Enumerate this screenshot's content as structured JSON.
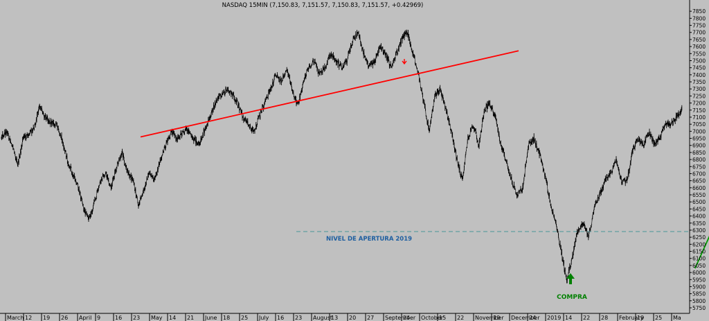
{
  "chart_data": {
    "type": "line",
    "title": "NASDAQ 15MIN (7,150.83, 7,151.57, 7,150.83, 7,151.57, +0.42969)",
    "ylim": [
      5750,
      7900
    ],
    "y_ticks": [
      7850,
      7800,
      7750,
      7700,
      7650,
      7600,
      7550,
      7500,
      7450,
      7400,
      7350,
      7300,
      7250,
      7200,
      7150,
      7100,
      7050,
      7000,
      6950,
      6900,
      6850,
      6800,
      6750,
      6700,
      6650,
      6600,
      6550,
      6500,
      6450,
      6400,
      6350,
      6300,
      6250,
      6200,
      6150,
      6100,
      6050,
      6000,
      5950,
      5900,
      5850,
      5800,
      5750
    ],
    "x_ticks": [
      "March",
      "12",
      "19",
      "26",
      "April",
      "9",
      "16",
      "23",
      "May",
      "14",
      "21",
      "June",
      "18",
      "25",
      "July",
      "16",
      "23",
      "August",
      "13",
      "20",
      "27",
      "September",
      "24",
      "October",
      "15",
      "22",
      "November",
      "19",
      "December",
      "24",
      "2019",
      "14",
      "22",
      "28",
      "February",
      "19",
      "25",
      "Ma"
    ],
    "background": "#c0c0c0",
    "series": [
      {
        "color": "#000000",
        "y": [
          6960,
          7000,
          6900,
          6760,
          6950,
          6980,
          7020,
          7180,
          7100,
          7060,
          7050,
          6950,
          6800,
          6700,
          6600,
          6450,
          6380,
          6500,
          6650,
          6700,
          6600,
          6750,
          6850,
          6720,
          6650,
          6480,
          6600,
          6700,
          6650,
          6800,
          6900,
          7000,
          6950,
          6980,
          7020,
          6950,
          6900,
          7000,
          7100,
          7200,
          7250,
          7300,
          7270,
          7200,
          7100,
          7050,
          7000,
          7100,
          7200,
          7300,
          7400,
          7350,
          7450,
          7300,
          7180,
          7350,
          7450,
          7500,
          7400,
          7450,
          7550,
          7500,
          7450,
          7500,
          7650,
          7700,
          7550,
          7450,
          7500,
          7600,
          7550,
          7450,
          7550,
          7650,
          7700,
          7550,
          7400,
          7200,
          7000,
          7250,
          7300,
          7150,
          7000,
          6800,
          6650,
          6950,
          7050,
          6900,
          7150,
          7200,
          7100,
          6900,
          6800,
          6650,
          6550,
          6600,
          6900,
          6950,
          6850,
          6700,
          6500,
          6350,
          6150,
          5950,
          6100,
          6300,
          6350,
          6250,
          6450,
          6550,
          6650,
          6700,
          6800,
          6650,
          6650,
          6850,
          6950,
          6900,
          7000,
          6900,
          6950,
          7050,
          7050,
          7100,
          7150
        ]
      }
    ],
    "trendlines": [
      {
        "color": "#ff0000",
        "from": [
          7.5,
          6960
        ],
        "to": [
          28.5,
          7570
        ]
      },
      {
        "color": "#009900",
        "from": [
          38.3,
          6030
        ],
        "to": [
          41.8,
          7020
        ]
      }
    ],
    "hline": {
      "y": 6290,
      "color": "#5f9ea0",
      "label": "NIVEL DE APERTURA 2019"
    },
    "annotations": [
      {
        "text": "COMPRA",
        "color": "#008000"
      }
    ],
    "box_marker": {
      "x": 42.9,
      "y_top": 7120,
      "y_bottom": 7030
    }
  }
}
